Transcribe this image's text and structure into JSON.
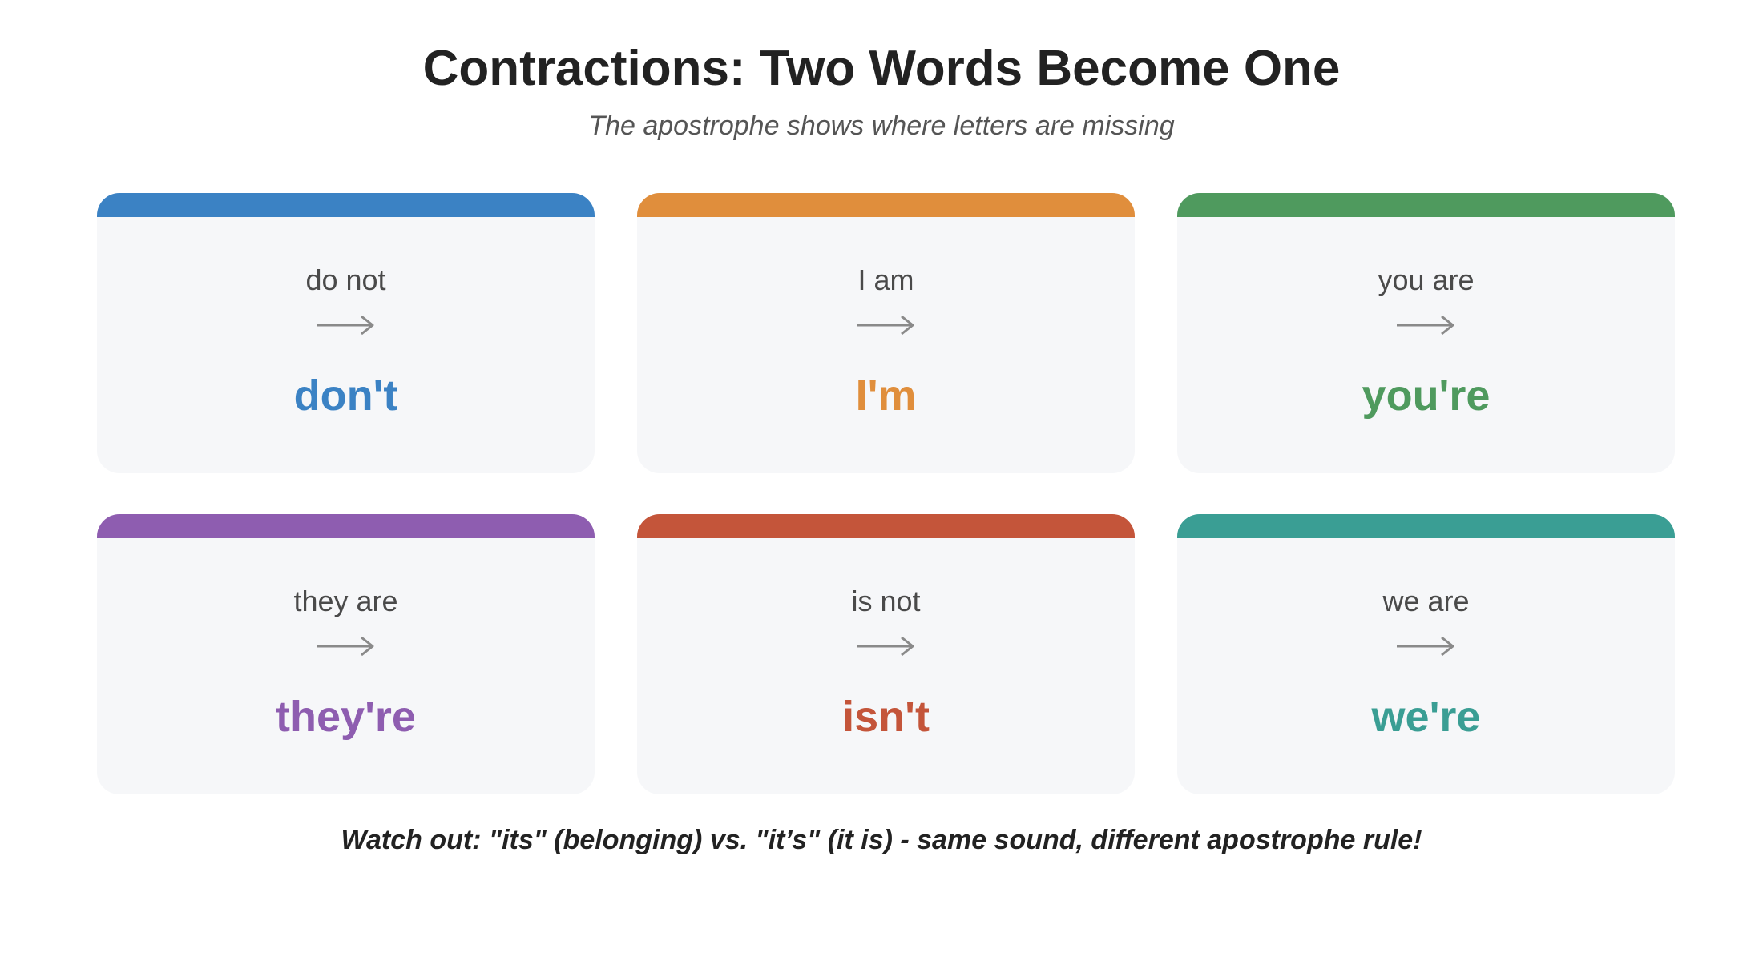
{
  "header": {
    "title": "Contractions: Two Words Become One",
    "subtitle": "The apostrophe shows where letters are missing"
  },
  "cards": [
    {
      "phrase": "do not",
      "contraction": "don't",
      "color": "#3b82c4",
      "arrow_icon": "right-arrow-icon"
    },
    {
      "phrase": "I am",
      "contraction": "I'm",
      "color": "#e08e3c",
      "arrow_icon": "right-arrow-icon"
    },
    {
      "phrase": "you are",
      "contraction": "you're",
      "color": "#4f9a5e",
      "arrow_icon": "right-arrow-icon"
    },
    {
      "phrase": "they are",
      "contraction": "they're",
      "color": "#8e5db0",
      "arrow_icon": "right-arrow-icon"
    },
    {
      "phrase": "is not",
      "contraction": "isn't",
      "color": "#c4553a",
      "arrow_icon": "right-arrow-icon"
    },
    {
      "phrase": "we are",
      "contraction": "we're",
      "color": "#3a9e94",
      "arrow_icon": "right-arrow-icon"
    }
  ],
  "footer": {
    "note": "Watch out: \"its\" (belonging) vs. \"it’s\" (it is) - same sound, different apostrophe rule!"
  }
}
